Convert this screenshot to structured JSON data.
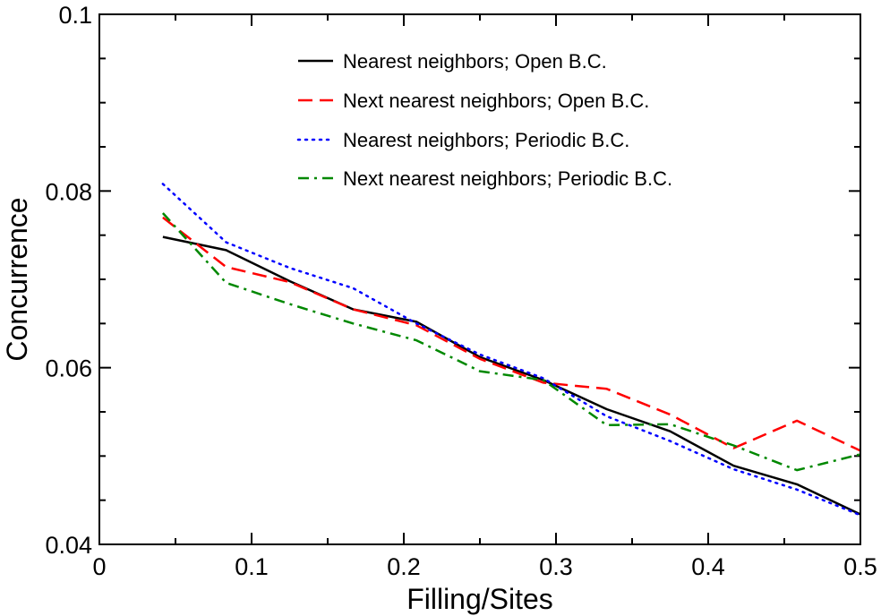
{
  "chart_data": {
    "type": "line",
    "title": "",
    "xlabel": "Filling/Sites",
    "ylabel": "Concurrence",
    "xlim": [
      0,
      0.5
    ],
    "ylim": [
      0.04,
      0.1
    ],
    "xticks": [
      0,
      0.1,
      0.2,
      0.3,
      0.4,
      0.5
    ],
    "xtick_labels": [
      "0",
      "0.1",
      "0.2",
      "0.3",
      "0.4",
      "0.5"
    ],
    "yticks": [
      0.04,
      0.06,
      0.08,
      0.1
    ],
    "ytick_labels": [
      "0.04",
      "0.06",
      "0.08",
      "0.1"
    ],
    "x_minor_step": 0.05,
    "y_minor_step": 0.005,
    "grid": false,
    "legend_position": "top-center",
    "series": [
      {
        "name": "Nearest neighbors; Open B.C.",
        "color": "#000000",
        "dash": "solid",
        "x": [
          0.0417,
          0.0833,
          0.125,
          0.1667,
          0.2083,
          0.25,
          0.2917,
          0.3333,
          0.375,
          0.4167,
          0.4583,
          0.5
        ],
        "y": [
          0.0748,
          0.0733,
          0.0698,
          0.0666,
          0.0652,
          0.0612,
          0.0586,
          0.0553,
          0.0528,
          0.0489,
          0.0468,
          0.0434
        ]
      },
      {
        "name": "Next nearest neighbors; Open B.C.",
        "color": "#ff0000",
        "dash": "dashed",
        "x": [
          0.0417,
          0.0833,
          0.125,
          0.1667,
          0.2083,
          0.25,
          0.2917,
          0.3333,
          0.375,
          0.4167,
          0.4583,
          0.5
        ],
        "y": [
          0.077,
          0.0714,
          0.0697,
          0.0666,
          0.0648,
          0.061,
          0.0583,
          0.0576,
          0.0547,
          0.0509,
          0.054,
          0.0506
        ]
      },
      {
        "name": "Nearest neighbors; Periodic B.C.",
        "color": "#0000ff",
        "dash": "dotted",
        "x": [
          0.0417,
          0.0833,
          0.125,
          0.1667,
          0.2083,
          0.25,
          0.2917,
          0.3333,
          0.375,
          0.4167,
          0.4583,
          0.5
        ],
        "y": [
          0.0808,
          0.0742,
          0.0713,
          0.069,
          0.065,
          0.0615,
          0.0588,
          0.0545,
          0.0517,
          0.0485,
          0.0462,
          0.0433
        ]
      },
      {
        "name": "Next nearest neighbors; Periodic B.C.",
        "color": "#008800",
        "dash": "dashdot",
        "x": [
          0.0417,
          0.0833,
          0.125,
          0.1667,
          0.2083,
          0.25,
          0.2917,
          0.3333,
          0.375,
          0.4167,
          0.4583,
          0.5
        ],
        "y": [
          0.0775,
          0.0696,
          0.0672,
          0.065,
          0.0631,
          0.0596,
          0.0586,
          0.0535,
          0.0536,
          0.0512,
          0.0484,
          0.0502
        ]
      }
    ]
  }
}
